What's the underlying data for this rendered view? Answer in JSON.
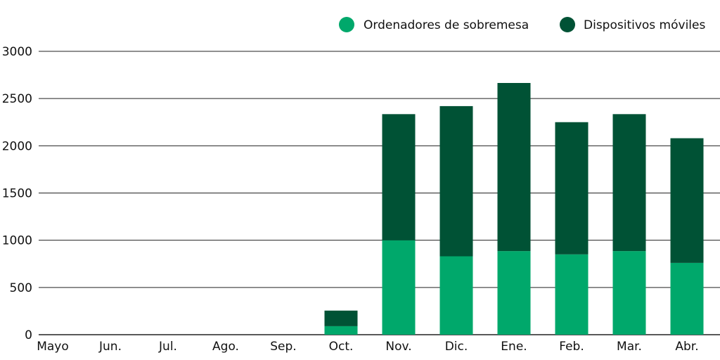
{
  "chart_data": {
    "type": "bar",
    "stacked": true,
    "categories": [
      "Mayo",
      "Jun.",
      "Jul.",
      "Ago.",
      "Sep.",
      "Oct.",
      "Nov.",
      "Dic.",
      "Ene.",
      "Feb.",
      "Mar.",
      "Abr."
    ],
    "series": [
      {
        "name": "Ordenadores de sobremesa",
        "color": "#00a86b",
        "values": [
          0,
          0,
          0,
          0,
          0,
          90,
          1000,
          830,
          885,
          850,
          885,
          760
        ]
      },
      {
        "name": "Dispositivos móviles",
        "color": "#005235",
        "values": [
          0,
          0,
          0,
          0,
          0,
          165,
          1335,
          1590,
          1780,
          1400,
          1450,
          1320
        ]
      }
    ],
    "yticks": [
      0,
      500,
      1000,
      1500,
      2000,
      2500,
      3000
    ],
    "ylim": [
      0,
      3000
    ],
    "grid": true,
    "legend_position": "top-right",
    "title": "",
    "xlabel": "",
    "ylabel": ""
  }
}
